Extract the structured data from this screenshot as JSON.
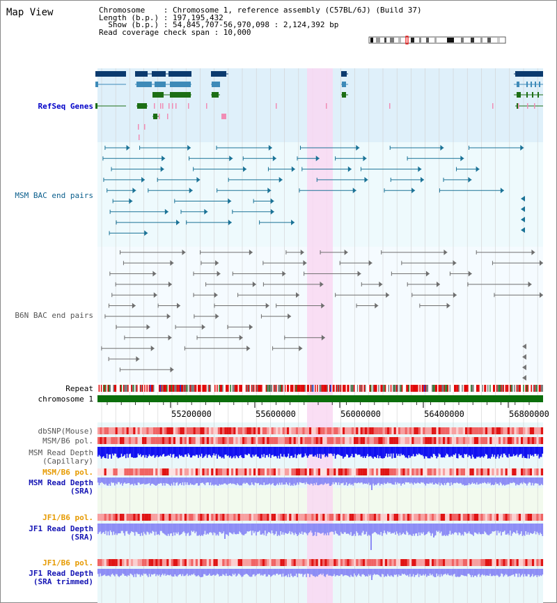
{
  "title": "Map View",
  "info": {
    "chromosome_line": "Chromosome    : Chromosome 1, reference assembly (C57BL/6J) (Build 37)",
    "length_line": "Length (b.p.) : 197,195,432",
    "show_line": "  Show (b.p.) : 54,845,707-56,970,098 : 2,124,392 bp",
    "coverage_line": "Read coverage check span : 10,000"
  },
  "tracks": {
    "refseq": "RefSeq Genes",
    "msm_bac": "MSM BAC end pairs",
    "b6n_bac": "B6N BAC end pairs",
    "repeat": "Repeat",
    "chromosome": "chromosome 1",
    "dbsnp": "dbSNP(Mouse)",
    "msm_b6_pol_1": "MSM/B6 pol.",
    "msm_read_depth_cap_1": "MSM Read Depth",
    "msm_read_depth_cap_2": "(Capillary)",
    "msm_b6_pol_2": "MSM/B6 pol.",
    "msm_read_depth_sra_1": "MSM Read Depth",
    "msm_read_depth_sra_2": "(SRA)",
    "jf1_b6_pol_1": "JF1/B6 pol.",
    "jf1_read_depth_sra_1": "JF1 Read Depth",
    "jf1_read_depth_sra_2": "(SRA)",
    "jf1_b6_pol_2": "JF1/B6 pol.",
    "jf1_read_depth_trim_1": "JF1 Read Depth",
    "jf1_read_depth_trim_2": "(SRA trimmed)"
  },
  "axis": {
    "ticks": [
      "55200000",
      "55600000",
      "56000000",
      "56400000",
      "56800000"
    ]
  },
  "colors": {
    "highlight": "#f9d8f2",
    "refseq_bg": "#dff0fa",
    "bac_bg": "#eefafd",
    "plain_bg": "#f5fbff",
    "refseq_navy": "#0b3a6e",
    "refseq_blue": "#3d8ab8",
    "refseq_green": "#1c6e14",
    "chromosome_bar": "#0b6e0b",
    "depth_capillary": "#1010f0",
    "depth_sra": "#8c8cf5"
  }
}
